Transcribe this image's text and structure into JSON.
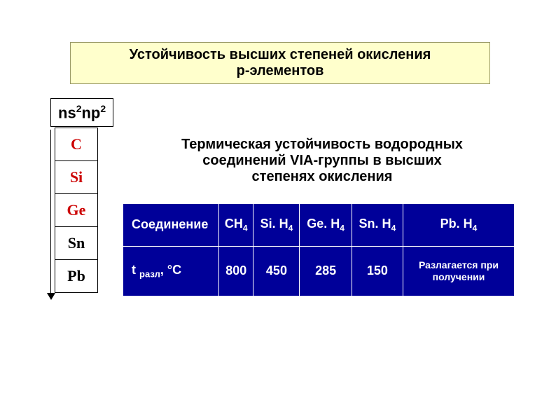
{
  "title": {
    "line1": "Устойчивость высших степеней окисления",
    "line2": "p-элементов"
  },
  "config": {
    "text": "ns",
    "sup1": "2",
    "text2": "np",
    "sup2": "2"
  },
  "subtitle": {
    "line1": "Термическая устойчивость водородных",
    "line2": "соединений VIA-группы в высших",
    "line3": "степенях окисления"
  },
  "elements": [
    {
      "sym": "C",
      "color": "#cc0000"
    },
    {
      "sym": "Si",
      "color": "#cc0000"
    },
    {
      "sym": "Ge",
      "color": "#cc0000"
    },
    {
      "sym": "Sn",
      "color": "#000000"
    },
    {
      "sym": "Pb",
      "color": "#000000"
    }
  ],
  "table": {
    "row1_label": "Соединение",
    "compounds": [
      {
        "pre": "CH",
        "sub": "4"
      },
      {
        "pre": "Si. H",
        "sub": "4"
      },
      {
        "pre": "Ge. H",
        "sub": "4"
      },
      {
        "pre": "Sn. H",
        "sub": "4"
      },
      {
        "pre": "Pb. H",
        "sub": "4"
      }
    ],
    "row2_label_pre": "t ",
    "row2_label_sub": "разл",
    "row2_label_post": ", °C",
    "temps": [
      "800",
      "450",
      "285",
      "150"
    ],
    "decompose": {
      "line1": "Разлагается при",
      "line2": "получении"
    }
  },
  "colors": {
    "title_bg": "#ffffcc",
    "title_border": "#999966",
    "table_bg": "#000099",
    "table_fg": "#ffffff",
    "elem_red": "#cc0000"
  }
}
